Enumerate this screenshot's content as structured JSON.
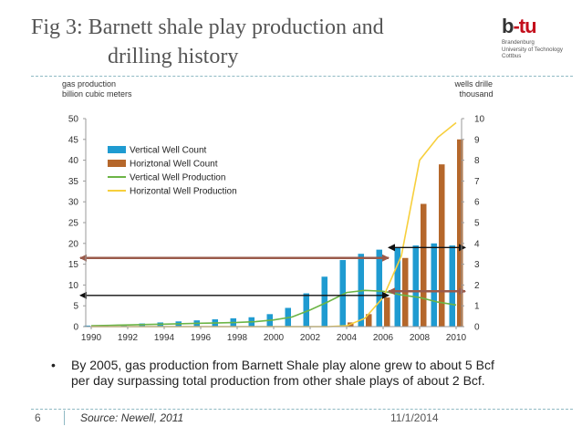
{
  "slide": {
    "title_line1": "Fig 3: Barnett shale play production and",
    "title_line2": "drilling history",
    "logo_mark_main": "b",
    "logo_mark_accent": "-tu",
    "logo_lines": [
      "Brandenburg",
      "University of Technology",
      "Cottbus"
    ],
    "bullet_symbol": "•",
    "bullet_text": "By 2005, gas production from Barnett Shale play alone grew to about 5 Bcf per day surpassing total production from other shale plays of about 2 Bcf.",
    "slide_number": "6",
    "source": "Source: Newell, 2011",
    "date": "11/1/2014"
  },
  "colors": {
    "vertical_wells": "#1f9bd1",
    "horizontal_wells": "#b5672b",
    "vertical_production": "#6cb546",
    "horizontal_production": "#f7cf3c",
    "arrow_black": "#111111",
    "arrow_brown": "#9a5a4a"
  },
  "chart_data": {
    "type": "bar",
    "left_axis_label_lines": [
      "gas production",
      "billion cubic meters"
    ],
    "right_axis_label_lines": [
      "wells drilled",
      "thousands"
    ],
    "ylim_left": [
      0,
      50
    ],
    "ylim_right": [
      0,
      10
    ],
    "left_ticks": [
      0,
      5,
      10,
      15,
      20,
      25,
      30,
      35,
      40,
      45,
      50
    ],
    "right_ticks": [
      0,
      1,
      2,
      3,
      4,
      5,
      6,
      7,
      8,
      9,
      10
    ],
    "x_tick_labels": [
      "1990",
      "1992",
      "1994",
      "1996",
      "1998",
      "2000",
      "2002",
      "2004",
      "2006",
      "2008",
      "2010"
    ],
    "years": [
      1990,
      1991,
      1992,
      1993,
      1994,
      1995,
      1996,
      1997,
      1998,
      1999,
      2000,
      2001,
      2002,
      2003,
      2004,
      2005,
      2006,
      2007,
      2008,
      2009,
      2010
    ],
    "legend_position": "top-left",
    "grid": false,
    "series": [
      {
        "name": "Vertical Well Count",
        "kind": "bar",
        "axis": "right",
        "color_key": "vertical_wells",
        "values": [
          0.05,
          0.05,
          0.1,
          0.15,
          0.2,
          0.25,
          0.3,
          0.35,
          0.4,
          0.45,
          0.6,
          0.9,
          1.6,
          2.4,
          3.2,
          3.5,
          3.7,
          3.8,
          3.9,
          4.0,
          3.9
        ]
      },
      {
        "name": "Horiztonal Well Count",
        "kind": "bar",
        "axis": "right",
        "color_key": "horizontal_wells",
        "values": [
          0,
          0,
          0,
          0,
          0,
          0,
          0,
          0,
          0,
          0,
          0,
          0,
          0,
          0,
          0.2,
          0.6,
          1.4,
          3.3,
          5.9,
          7.8,
          9.0
        ]
      },
      {
        "name": "Vertical Well Production",
        "kind": "line",
        "axis": "left",
        "color_key": "vertical_production",
        "values": [
          0.2,
          0.3,
          0.4,
          0.5,
          0.6,
          0.7,
          0.8,
          0.9,
          1.0,
          1.2,
          1.6,
          2.3,
          4.0,
          6.0,
          8.2,
          8.7,
          8.5,
          7.6,
          7.0,
          5.9,
          5.2
        ]
      },
      {
        "name": "Horizontal Well Production",
        "kind": "line",
        "axis": "left",
        "color_key": "horizontal_production",
        "values": [
          0,
          0,
          0,
          0,
          0,
          0,
          0,
          0,
          0,
          0,
          0,
          0,
          0,
          0,
          0.2,
          2.0,
          7.0,
          17.0,
          40.0,
          45.5,
          49.0
        ]
      }
    ],
    "annotation_arrows": [
      {
        "level": 19,
        "axis": "left",
        "from_year": 2006.3,
        "to_year": 2010.5,
        "heads": "both",
        "color_key": "arrow_black"
      },
      {
        "level": 16.5,
        "axis": "left",
        "from_year": 1989.4,
        "to_year": 2006.3,
        "heads": "both",
        "color_key": "arrow_brown"
      },
      {
        "level": 8.5,
        "axis": "left",
        "from_year": 2006.3,
        "to_year": 2010.5,
        "heads": "both",
        "color_key": "arrow_brown"
      },
      {
        "level": 7.5,
        "axis": "left",
        "from_year": 1989.4,
        "to_year": 2006.3,
        "heads": "both",
        "color_key": "arrow_black"
      }
    ]
  }
}
